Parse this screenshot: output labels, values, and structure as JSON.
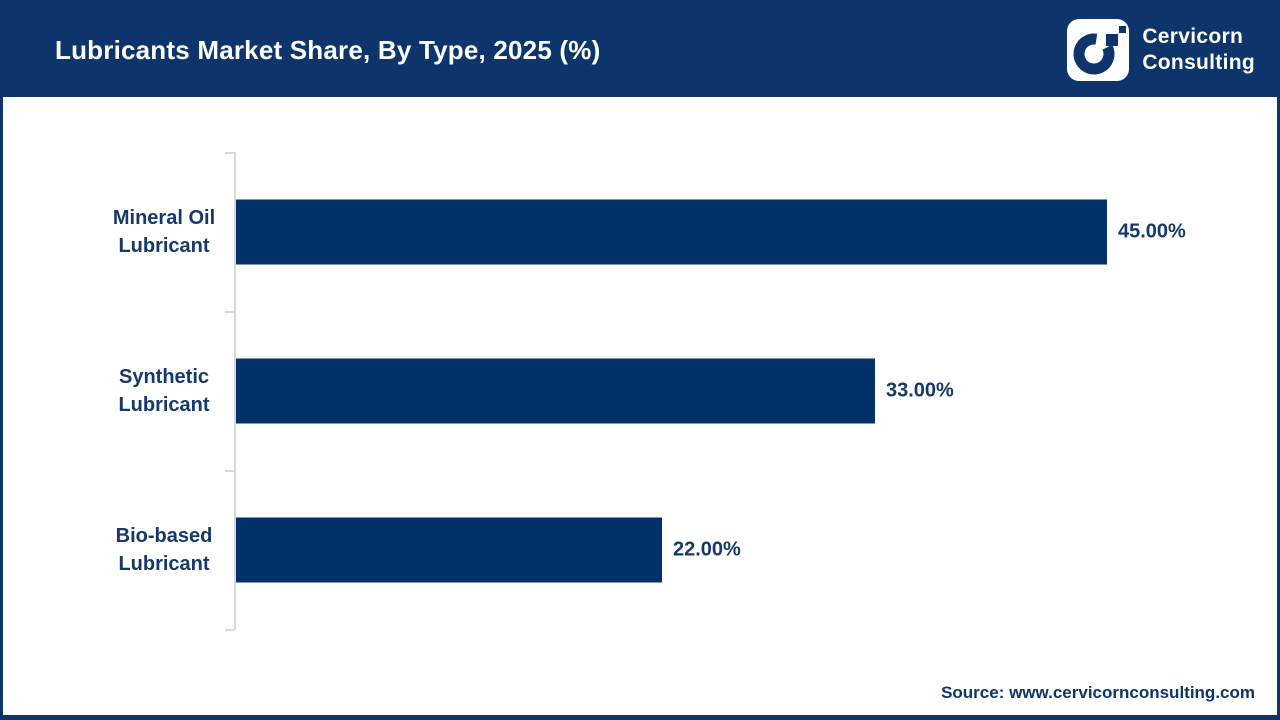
{
  "header": {
    "title": "Lubricants Market Share, By Type, 2025 (%)",
    "logo": {
      "line1": "Cervicorn",
      "line2": "Consulting"
    }
  },
  "chart_data": {
    "type": "bar",
    "orientation": "horizontal",
    "title": "Lubricants Market Share, By Type, 2025 (%)",
    "categories": [
      "Mineral Oil Lubricant",
      "Synthetic Lubricant",
      "Bio-based Lubricant"
    ],
    "category_lines": [
      [
        "Mineral Oil",
        "Lubricant"
      ],
      [
        "Synthetic",
        "Lubricant"
      ],
      [
        "Bio-based",
        "Lubricant"
      ]
    ],
    "values": [
      45.0,
      33.0,
      22.0
    ],
    "value_labels": [
      "45.00%",
      "33.00%",
      "22.00%"
    ],
    "unit": "%",
    "grid": false,
    "legend": false,
    "bar_color": "#003168",
    "label_color": "#16386b",
    "axis_color": "#d9d9d9"
  },
  "footer": {
    "source": "Source: www.cervicornconsulting.com"
  },
  "colors": {
    "header_background": "#0d356b",
    "page_background": "#ffffff",
    "border": "#0d356b"
  }
}
